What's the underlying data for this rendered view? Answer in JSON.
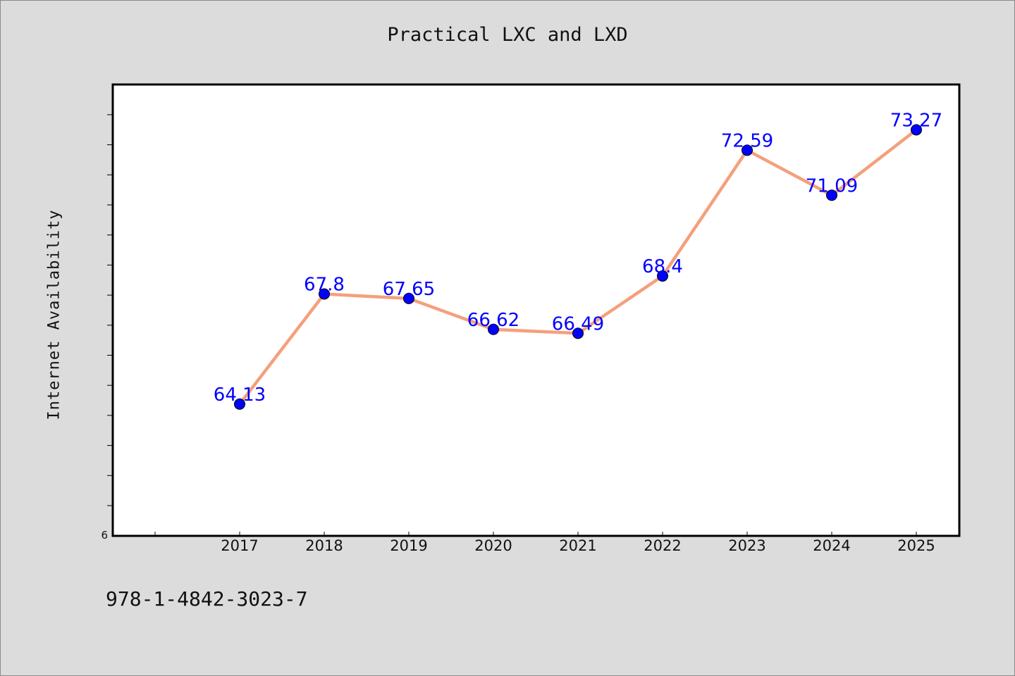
{
  "chart_data": {
    "type": "line",
    "title": "Practical LXC and LXD",
    "xlabel": "",
    "ylabel": "Internet Availability",
    "categories": [
      "2017",
      "2018",
      "2019",
      "2020",
      "2021",
      "2022",
      "2023",
      "2024",
      "2025"
    ],
    "series": [
      {
        "values": [
          64.13,
          67.8,
          67.65,
          66.62,
          66.49,
          68.4,
          72.59,
          71.09,
          73.27
        ],
        "labels": [
          "64.13",
          "67.8",
          "67.65",
          "66.62",
          "66.49",
          "68.4",
          "72.59",
          "71.09",
          "73.27"
        ],
        "line_color": "#f4a07c",
        "marker_color": "#0000ff"
      }
    ],
    "y_min_label": "6",
    "ylim": [
      59.74,
      74.78
    ],
    "grid": false,
    "legend": "none"
  },
  "footer": {
    "isbn": "978-1-4842-3023-7"
  },
  "colors": {
    "background": "#dcdcdc",
    "plot_background": "#ffffff",
    "label_color": "#0000ff"
  }
}
